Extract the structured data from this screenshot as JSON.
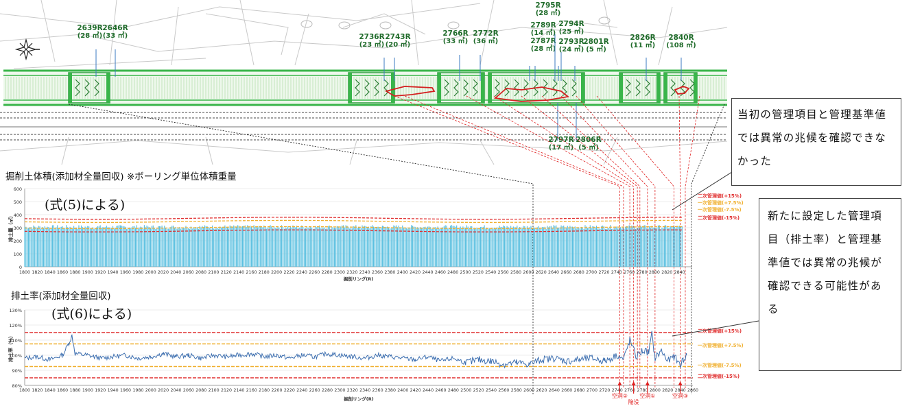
{
  "colors": {
    "accent_green": "#39b54a",
    "bar_blue": "#5bc0e0",
    "line_blue": "#3d6fb0",
    "secondary_red": "#e03030",
    "primary_yellow": "#f0b030",
    "label_red": "#e02020"
  },
  "map": {
    "compass": "compass-rose-icon",
    "ring_labels": [
      {
        "id": "2639R",
        "vol": "(28 ㎥)"
      },
      {
        "id": "2646R",
        "vol": "(33 ㎥)"
      },
      {
        "id": "2736R",
        "vol": "(23 ㎥)"
      },
      {
        "id": "2743R",
        "vol": "(20 ㎥)"
      },
      {
        "id": "2766R",
        "vol": "(33 ㎥)"
      },
      {
        "id": "2772R",
        "vol": "(36 ㎥)"
      },
      {
        "id": "2789R",
        "vol": "(14 ㎥)"
      },
      {
        "id": "2787R",
        "vol": "(28 ㎥)"
      },
      {
        "id": "2795R",
        "vol": "(28 ㎥)"
      },
      {
        "id": "2794R",
        "vol": "(25 ㎥)"
      },
      {
        "id": "2793R",
        "vol": "(24 ㎥)"
      },
      {
        "id": "2801R",
        "vol": "(5 ㎥)"
      },
      {
        "id": "2826R",
        "vol": "(11 ㎥)"
      },
      {
        "id": "2840R",
        "vol": "(108 ㎥)"
      },
      {
        "id": "2797R",
        "vol": "(17 ㎥)"
      },
      {
        "id": "2806R",
        "vol": "(5 ㎥)"
      }
    ]
  },
  "callouts": {
    "c1": "当初の管理項目と管理基準値では異常の兆候を確認できなかった",
    "c2": "新たに設定した管理項目（排土率）と管理基準値では異常の兆候が確認できる可能性がある"
  },
  "chart_data": [
    {
      "type": "bar",
      "title": "掘削土体積(添加材全量回収) ※ボーリング単位体積重量",
      "formula": "(式(5)による)",
      "xlabel": "掘削リング(R)",
      "ylabel": "排土量（㎥）",
      "x_range": [
        1800,
        2860
      ],
      "ylim": [
        0,
        600
      ],
      "yticks": [
        "0",
        "100",
        "200",
        "300",
        "400",
        "500",
        "600"
      ],
      "xticks": [
        "1800",
        "1820",
        "1840",
        "1860",
        "1880",
        "1900",
        "1920",
        "1940",
        "1960",
        "1980",
        "2000",
        "2020",
        "2040",
        "2060",
        "2080",
        "2100",
        "2120",
        "2140",
        "2160",
        "2180",
        "2200",
        "2220",
        "2240",
        "2260",
        "2280",
        "2300",
        "2320",
        "2340",
        "2360",
        "2380",
        "2400",
        "2420",
        "2440",
        "2460",
        "2480",
        "2500",
        "2520",
        "2540",
        "2560",
        "2580",
        "2600",
        "2620",
        "2640",
        "2660",
        "2680",
        "2700",
        "2720",
        "2740",
        "2760",
        "2780",
        "2800",
        "2820",
        "2840"
      ],
      "bar_range": [
        1800,
        2845
      ],
      "approx_value": 305,
      "thresholds": [
        {
          "label": "二次管理値(+15%)",
          "value": 372,
          "color": "#e03030"
        },
        {
          "label": "一次管理値(+7.5%)",
          "value": 348,
          "color": "#f0b030"
        },
        {
          "label": "一次管理値(-7.5%)",
          "value": 300,
          "color": "#f0b030"
        },
        {
          "label": "二次管理値(-15%)",
          "value": 275,
          "color": "#e03030"
        }
      ]
    },
    {
      "type": "line",
      "title": "排土率(添加材全量回収)",
      "formula": "(式(6)による)",
      "xlabel": "掘削リング(R)",
      "ylabel": "排土率（％）",
      "x_range": [
        1800,
        2860
      ],
      "ylim": [
        80,
        130
      ],
      "yticks": [
        "80%",
        "90%",
        "100%",
        "110%",
        "120%",
        "130%"
      ],
      "xticks": [
        "1800",
        "1820",
        "1840",
        "1860",
        "1880",
        "1900",
        "1920",
        "1940",
        "1960",
        "1980",
        "2000",
        "2020",
        "2040",
        "2060",
        "2080",
        "2100",
        "2120",
        "2140",
        "2160",
        "2180",
        "2200",
        "2220",
        "2240",
        "2260",
        "2280",
        "2300",
        "2320",
        "2340",
        "2360",
        "2380",
        "2400",
        "2420",
        "2440",
        "2460",
        "2480",
        "2500",
        "2520",
        "2540",
        "2560",
        "2580",
        "2600",
        "2620",
        "2640",
        "2660",
        "2680",
        "2700",
        "2720",
        "2740",
        "2760",
        "2780",
        "2800",
        "2820",
        "2840",
        "2860"
      ],
      "series": [
        {
          "x": [
            1800,
            1820,
            1840,
            1860,
            1870,
            1875,
            1880,
            1900,
            1920,
            1940,
            1960,
            1980,
            2000,
            2020,
            2040,
            2060,
            2080,
            2100,
            2120,
            2140,
            2160,
            2180,
            2200,
            2220,
            2240,
            2260,
            2280,
            2300,
            2320,
            2340,
            2360,
            2380,
            2400,
            2420,
            2440,
            2460,
            2480,
            2500,
            2520,
            2540,
            2560,
            2580,
            2600,
            2620,
            2640,
            2660,
            2680,
            2700,
            2720,
            2740,
            2750,
            2760,
            2770,
            2780,
            2790,
            2795,
            2800,
            2810,
            2820,
            2830,
            2840,
            2845,
            2850
          ],
          "values": [
            98,
            99,
            97,
            100,
            108,
            113,
            101,
            100,
            98,
            99,
            100,
            98,
            99,
            101,
            99,
            100,
            98,
            100,
            99,
            100,
            101,
            99,
            100,
            98,
            100,
            99,
            101,
            100,
            99,
            98,
            100,
            99,
            98,
            97,
            99,
            96,
            98,
            95,
            97,
            96,
            94,
            95,
            94,
            97,
            98,
            96,
            97,
            98,
            96,
            100,
            97,
            110,
            99,
            103,
            102,
            114,
            98,
            103,
            96,
            99,
            94,
            97,
            100
          ]
        }
      ],
      "thresholds": [
        {
          "label": "二次管理値(+15%)",
          "value": 115,
          "color": "#e03030"
        },
        {
          "label": "一次管理値(+7.5%)",
          "value": 107.5,
          "color": "#f0b030"
        },
        {
          "label": "一次管理値(-7.5%)",
          "value": 92.5,
          "color": "#f0b030"
        },
        {
          "label": "二次管理値(-15%)",
          "value": 85,
          "color": "#e03030"
        }
      ],
      "markers": [
        {
          "label": "空洞②",
          "ring": 2744
        },
        {
          "label": "陥没",
          "ring": 2766
        },
        {
          "label": "空洞①",
          "ring": 2788
        },
        {
          "label": "空洞③",
          "ring": 2840
        }
      ]
    }
  ]
}
